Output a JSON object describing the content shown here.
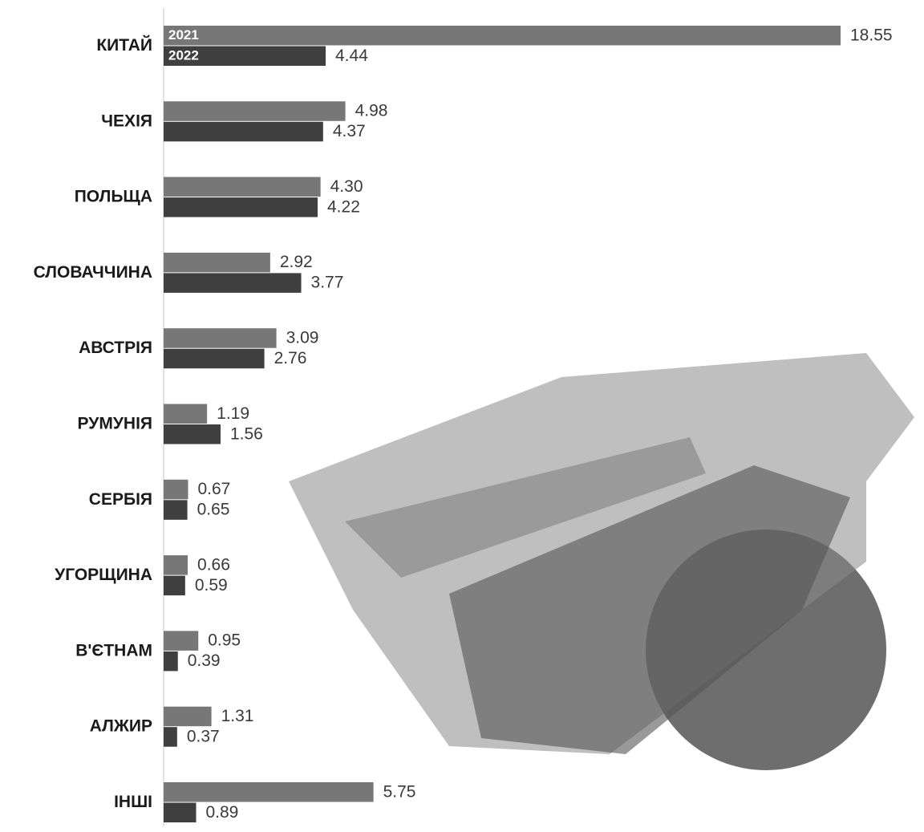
{
  "chart_data": {
    "type": "hbar",
    "categories": [
      "КИТАЙ",
      "ЧЕХІЯ",
      "ПОЛЬЩА",
      "СЛОВАЧЧИНА",
      "АВСТРІЯ",
      "РУМУНІЯ",
      "СЕРБІЯ",
      "УГОРЩИНА",
      "В'ЄТНАМ",
      "АЛЖИР",
      "ІНШІ"
    ],
    "series": [
      {
        "name": "2021",
        "color": "#777777",
        "values": [
          18.55,
          4.98,
          4.3,
          2.92,
          3.09,
          1.19,
          0.67,
          0.66,
          0.95,
          1.31,
          5.75
        ],
        "value_labels": [
          "18.55",
          "4.98",
          "4.30",
          "2.92",
          "3.09",
          "1.19",
          "0.67",
          "0.66",
          "0.95",
          "1.31",
          "5.75"
        ]
      },
      {
        "name": "2022",
        "color": "#3f3f3f",
        "values": [
          4.44,
          4.37,
          4.22,
          3.77,
          2.76,
          1.56,
          0.65,
          0.59,
          0.39,
          0.37,
          0.89
        ],
        "value_labels": [
          "4.44",
          "4.37",
          "4.22",
          "3.77",
          "2.76",
          "1.56",
          "0.65",
          "0.59",
          "0.39",
          "0.37",
          "0.89"
        ]
      }
    ]
  }
}
